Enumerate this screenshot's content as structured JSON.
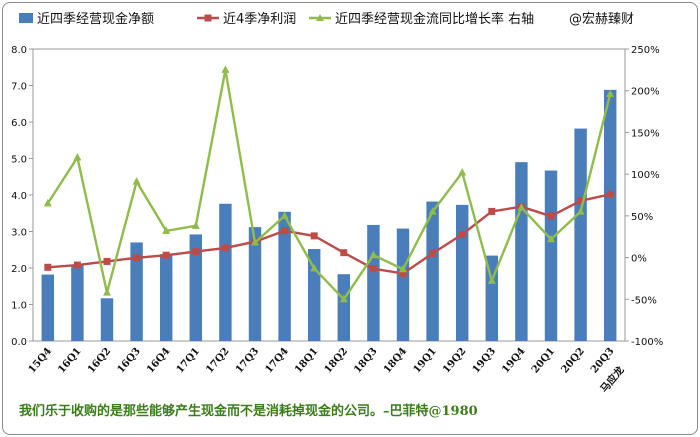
{
  "chart_data": {
    "type": "bar",
    "categories": [
      "15Q4",
      "16Q1",
      "16Q2",
      "16Q3",
      "16Q4",
      "17Q1",
      "17Q2",
      "17Q3",
      "17Q4",
      "18Q1",
      "18Q2",
      "18Q3",
      "18Q4",
      "19Q1",
      "19Q2",
      "19Q3",
      "19Q4",
      "20Q1",
      "20Q2",
      "20Q3"
    ],
    "series": [
      {
        "name": "近四季经营现金净额",
        "type": "bar",
        "axis": "left",
        "color": "#4a7ebb",
        "values": [
          1.82,
          2.08,
          1.17,
          2.7,
          2.38,
          2.92,
          3.76,
          3.12,
          3.54,
          2.52,
          1.83,
          3.18,
          3.08,
          3.82,
          3.73,
          2.34,
          4.9,
          4.67,
          5.82,
          6.88
        ]
      },
      {
        "name": "近4季净利润",
        "type": "line",
        "axis": "left",
        "color": "#be4b48",
        "values": [
          2.02,
          2.08,
          2.18,
          2.28,
          2.35,
          2.45,
          2.55,
          2.72,
          3.02,
          2.88,
          2.42,
          1.98,
          1.85,
          2.4,
          2.92,
          3.55,
          3.68,
          3.42,
          3.84,
          4.02
        ]
      },
      {
        "name": "近四季经营现金流同比增长率 右轴",
        "type": "line",
        "axis": "right",
        "color": "#8fbc4a",
        "values": [
          0.65,
          1.2,
          -0.42,
          0.91,
          0.32,
          0.38,
          2.25,
          0.18,
          0.5,
          -0.13,
          -0.5,
          0.03,
          -0.14,
          0.55,
          1.02,
          -0.28,
          0.6,
          0.22,
          0.55,
          1.96
        ]
      }
    ],
    "ylim_left": [
      0,
      8
    ],
    "yticks_left": [
      "0.0",
      "1.0",
      "2.0",
      "3.0",
      "4.0",
      "5.0",
      "6.0",
      "7.0",
      "8.0"
    ],
    "ylim_right": [
      -1.0,
      2.5
    ],
    "yticks_right": [
      "-100%",
      "-50%",
      "0%",
      "50%",
      "100%",
      "150%",
      "200%",
      "250%"
    ],
    "legend_position": "top",
    "grid": false,
    "annotations": {
      "watermark": "@宏赫臻财",
      "author": "马应龙"
    },
    "footer_quote": "我们乐于收购的是那些能够产生现金而不是消耗掉现金的公司。–巴菲特@1980"
  }
}
